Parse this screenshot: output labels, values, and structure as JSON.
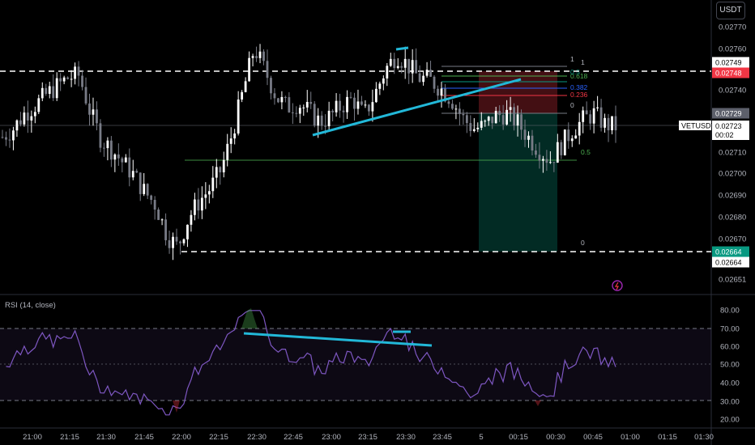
{
  "header": {
    "currency_button": "USDT"
  },
  "price_axis": {
    "ticks": [
      "0.02770",
      "0.02760",
      "0.02750",
      "0.02740",
      "0.02730",
      "0.02720",
      "0.02710",
      "0.02700",
      "0.02690",
      "0.02680",
      "0.02670",
      "0.02651"
    ],
    "tags": [
      {
        "text": "0.02749",
        "bg": "#ffffff",
        "fg": "#000000"
      },
      {
        "text": "0.02748",
        "bg": "#f23645",
        "fg": "#ffffff"
      },
      {
        "text": "0.02729",
        "bg": "#5d606b",
        "fg": "#ffffff"
      },
      {
        "text": "0.02664",
        "bg": "#089981",
        "fg": "#ffffff"
      },
      {
        "text": "0.02664",
        "bg": "#ffffff",
        "fg": "#000000"
      }
    ],
    "symbol_label": "VETUSDT",
    "last_price": "0.02723",
    "countdown": "00:02"
  },
  "fib_levels": [
    "1",
    "0.618",
    "0.5",
    "0.382",
    "0.236",
    "0"
  ],
  "fib_tool2": {
    "top_label": "1",
    "mid_label": "0.5",
    "zero_label": "0"
  },
  "rsi": {
    "label": "RSI (14, close)",
    "ticks": [
      "80.00",
      "70.00",
      "60.00",
      "50.00",
      "40.00",
      "30.00",
      "20.00"
    ],
    "upper_band": 70,
    "lower_band": 30,
    "line_color": "#7e57c2"
  },
  "time_axis": [
    "21:00",
    "21:15",
    "21:30",
    "21:45",
    "22:00",
    "22:15",
    "22:30",
    "22:45",
    "23:00",
    "23:15",
    "23:30",
    "23:45",
    "5",
    "00:15",
    "00:30",
    "00:45",
    "01:00",
    "01:15",
    "01:30"
  ],
  "colors": {
    "up": "#ffffff",
    "down": "#787b86",
    "trendline": "#22b8d8",
    "fib_red": "#f23645",
    "fib_green": "#4caf50",
    "fib_blue": "#2962ff"
  },
  "chart_data": {
    "type": "candlestick",
    "x_axis": "time (15-min labels, 1-min bars)",
    "y_range": [
      0.02651,
      0.02775
    ],
    "close_profile": [
      0.02718,
      0.02722,
      0.02729,
      0.02733,
      0.02738,
      0.02742,
      0.02746,
      0.02747,
      0.0273,
      0.02717,
      0.02712,
      0.02706,
      0.027,
      0.02692,
      0.02686,
      0.02672,
      0.02666,
      0.0268,
      0.02688,
      0.02694,
      0.02703,
      0.0272,
      0.0274,
      0.0276,
      0.02749,
      0.02737,
      0.02732,
      0.02734,
      0.0273,
      0.02725,
      0.02728,
      0.02733,
      0.02736,
      0.02728,
      0.02738,
      0.0275,
      0.02757,
      0.02752,
      0.02746,
      0.02745,
      0.02741,
      0.02736,
      0.02727,
      0.02722,
      0.02723,
      0.02728,
      0.02729,
      0.02725,
      0.02718,
      0.02712,
      0.02707,
      0.02714,
      0.02721,
      0.02726,
      0.02729,
      0.02724,
      0.02723
    ]
  }
}
